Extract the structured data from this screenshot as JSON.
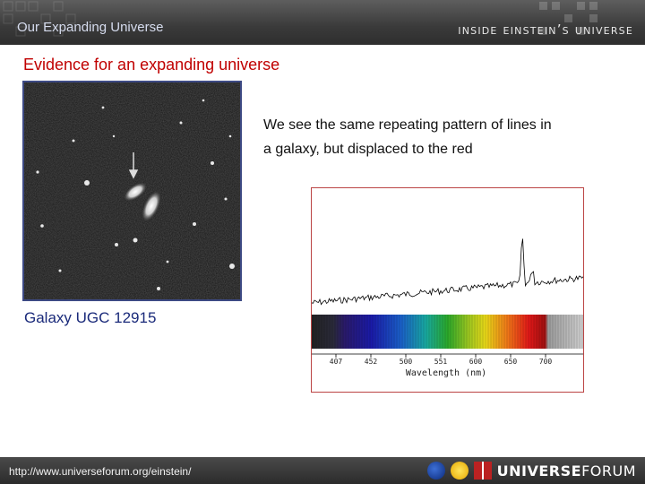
{
  "header": {
    "title": "Our Expanding Universe",
    "brand": "inside einstein’s universe"
  },
  "slide": {
    "title": "Evidence for an expanding universe",
    "caption": "Galaxy UGC 12915",
    "description_line1": "We see the same repeating pattern of lines in",
    "description_line2": "a galaxy, but displaced to the red"
  },
  "spectrum": {
    "tick_labels": [
      "407",
      "452",
      "500",
      "551",
      "600",
      "650",
      "700"
    ],
    "axis_label": "Wavelength (nm)"
  },
  "footer": {
    "url": "http://www.universeforum.org/einstein/",
    "brand_bold": "UNIVERSE",
    "brand_light": "FORUM"
  },
  "colors": {
    "title_red": "#c00000",
    "caption_blue": "#1a2a7a",
    "header_text": "#d6dcee"
  }
}
